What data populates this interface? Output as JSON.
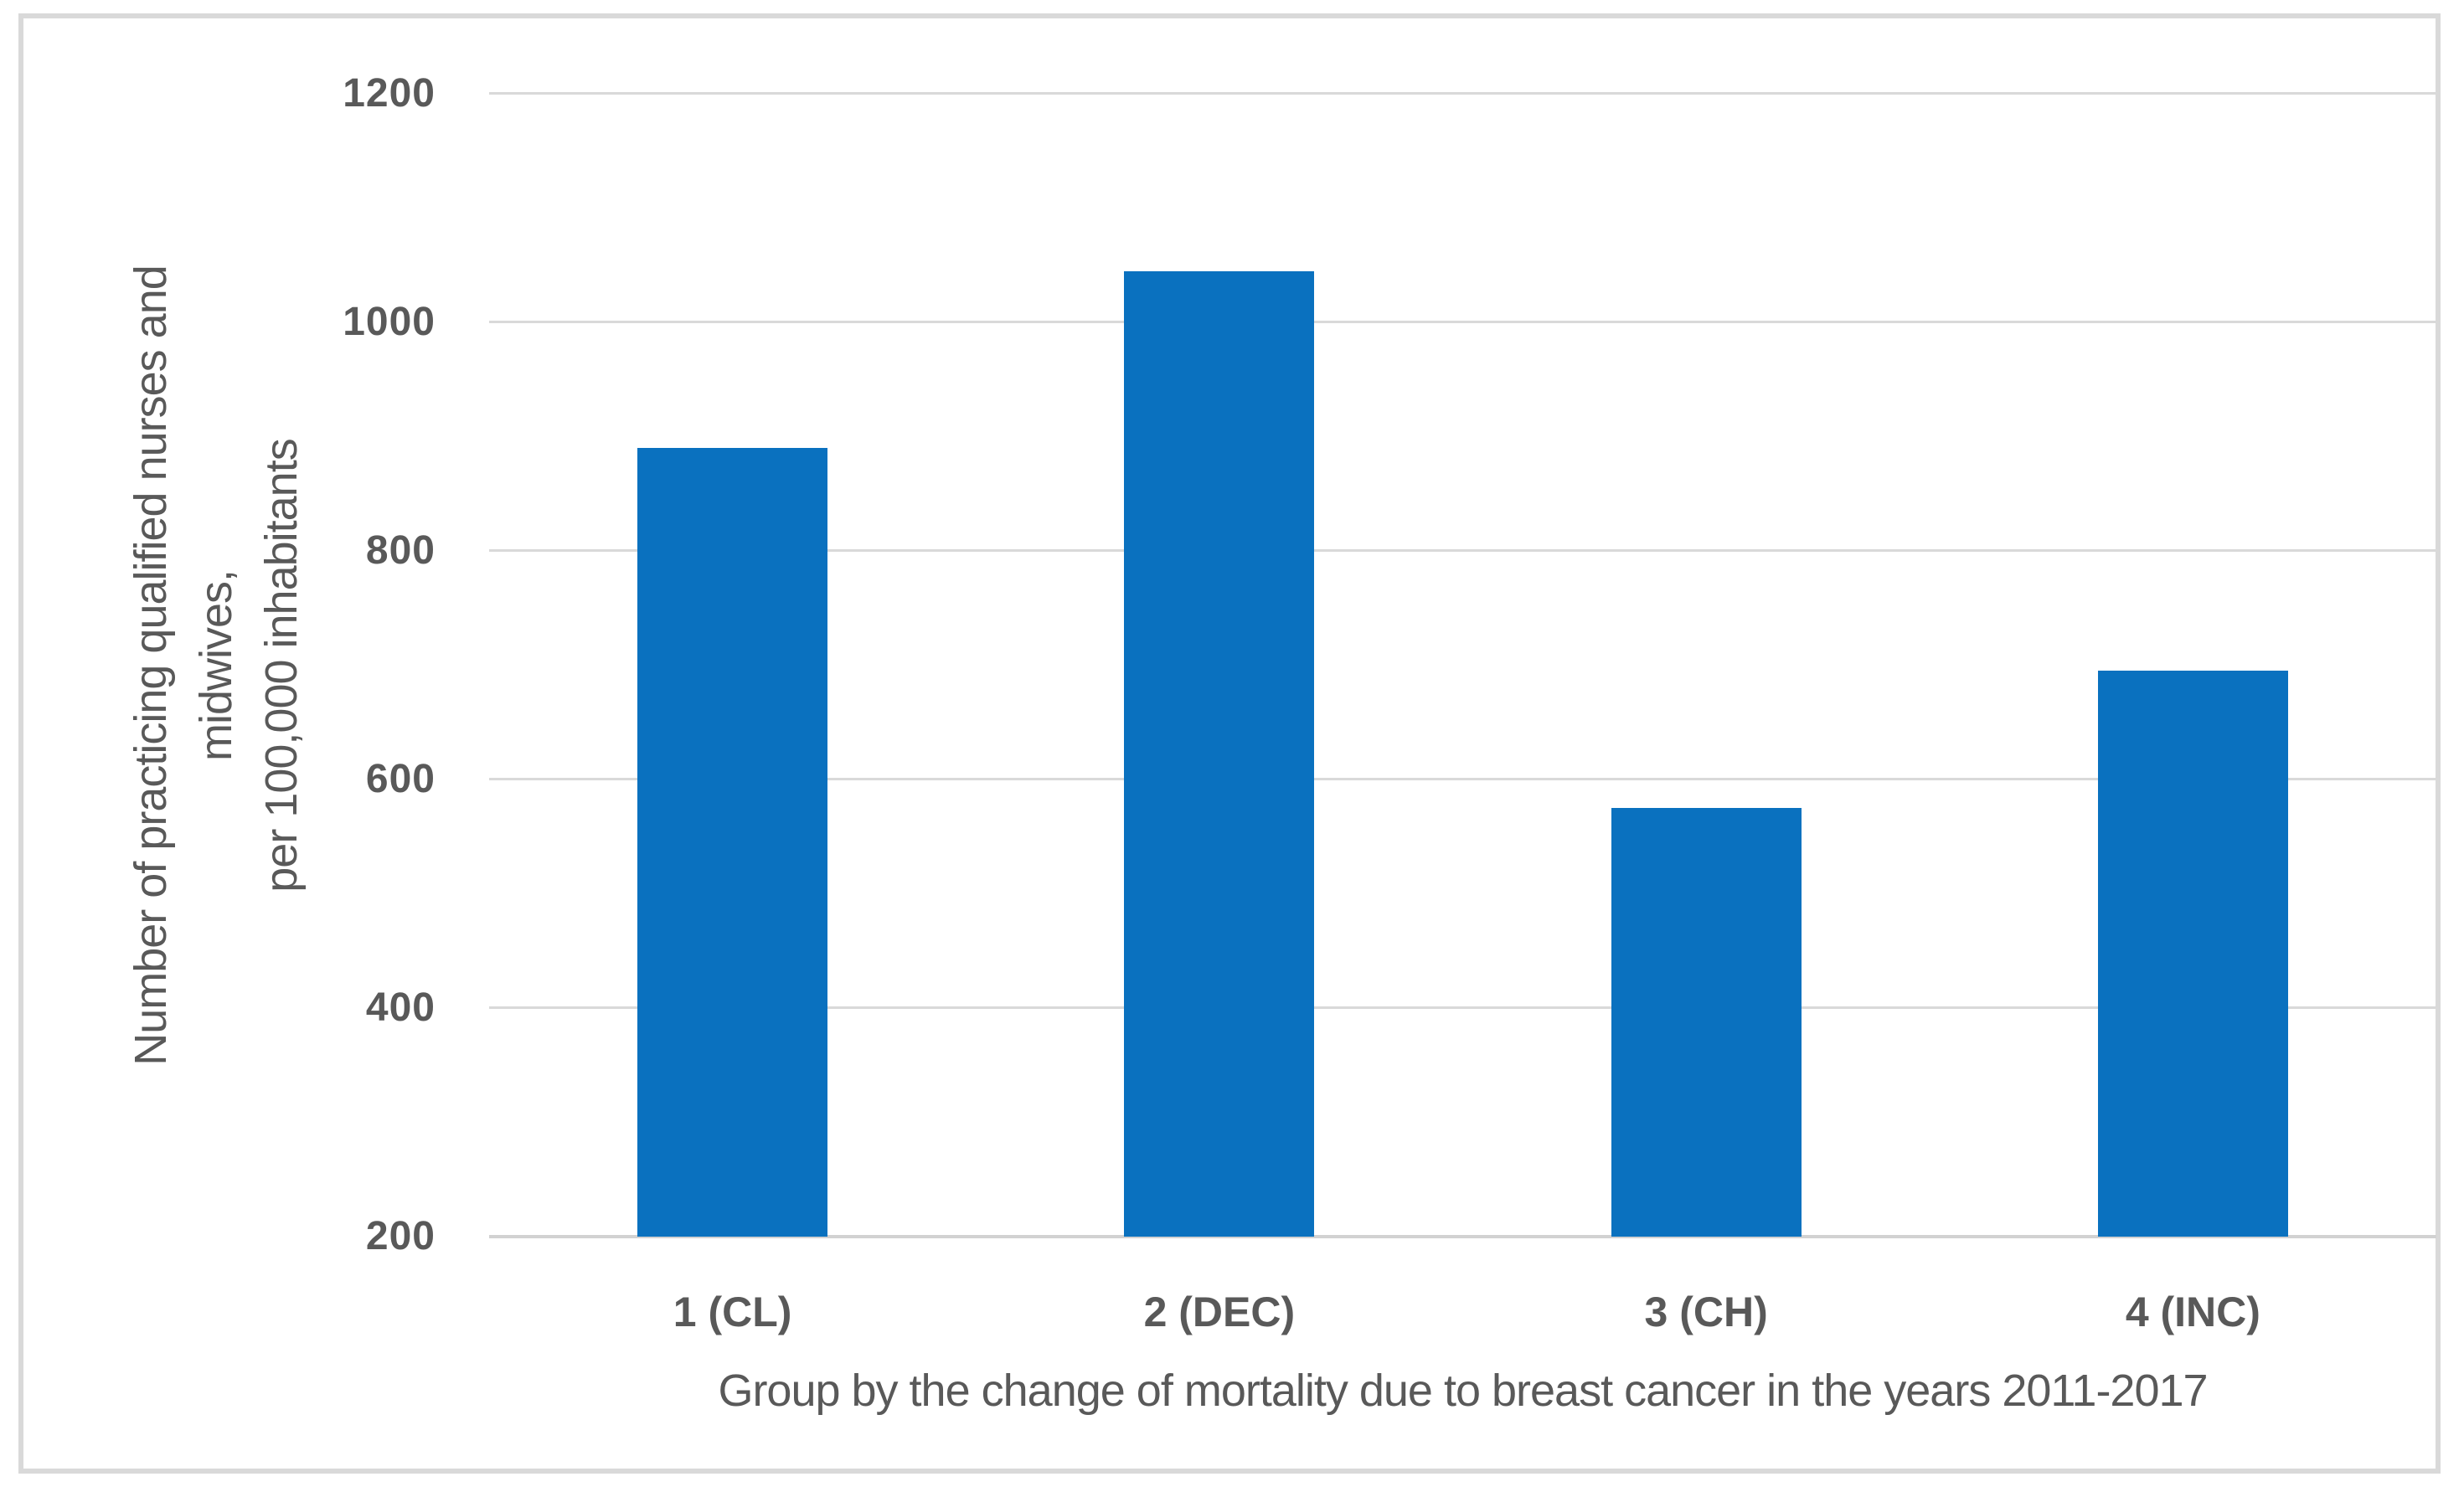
{
  "chart_data": {
    "type": "bar",
    "title": "",
    "categories": [
      "1 (CL)",
      "2 (DEC)",
      "3 (CH)",
      "4 (INC)"
    ],
    "values": [
      890,
      1045,
      575,
      695
    ],
    "xlabel": "Group by the change of mortality due to breast cancer in the years 2011-2017",
    "ylabel": "Number of practicing qualified nurses and midwives, per 100,000 inhabitants",
    "ylabel_lines": [
      "Number of practicing qualified nurses and",
      "midwives,",
      "per 100,000 inhabitants"
    ],
    "ylim": [
      200,
      1200
    ],
    "yticks": [
      200,
      400,
      600,
      800,
      1000,
      1200
    ],
    "grid": true,
    "legend": false,
    "bar_color": "#0a71bf",
    "text_color": "#595959",
    "gridline_color": "#d9d9d9",
    "border_color": "#d9d9d9",
    "background_color": "#ffffff"
  }
}
